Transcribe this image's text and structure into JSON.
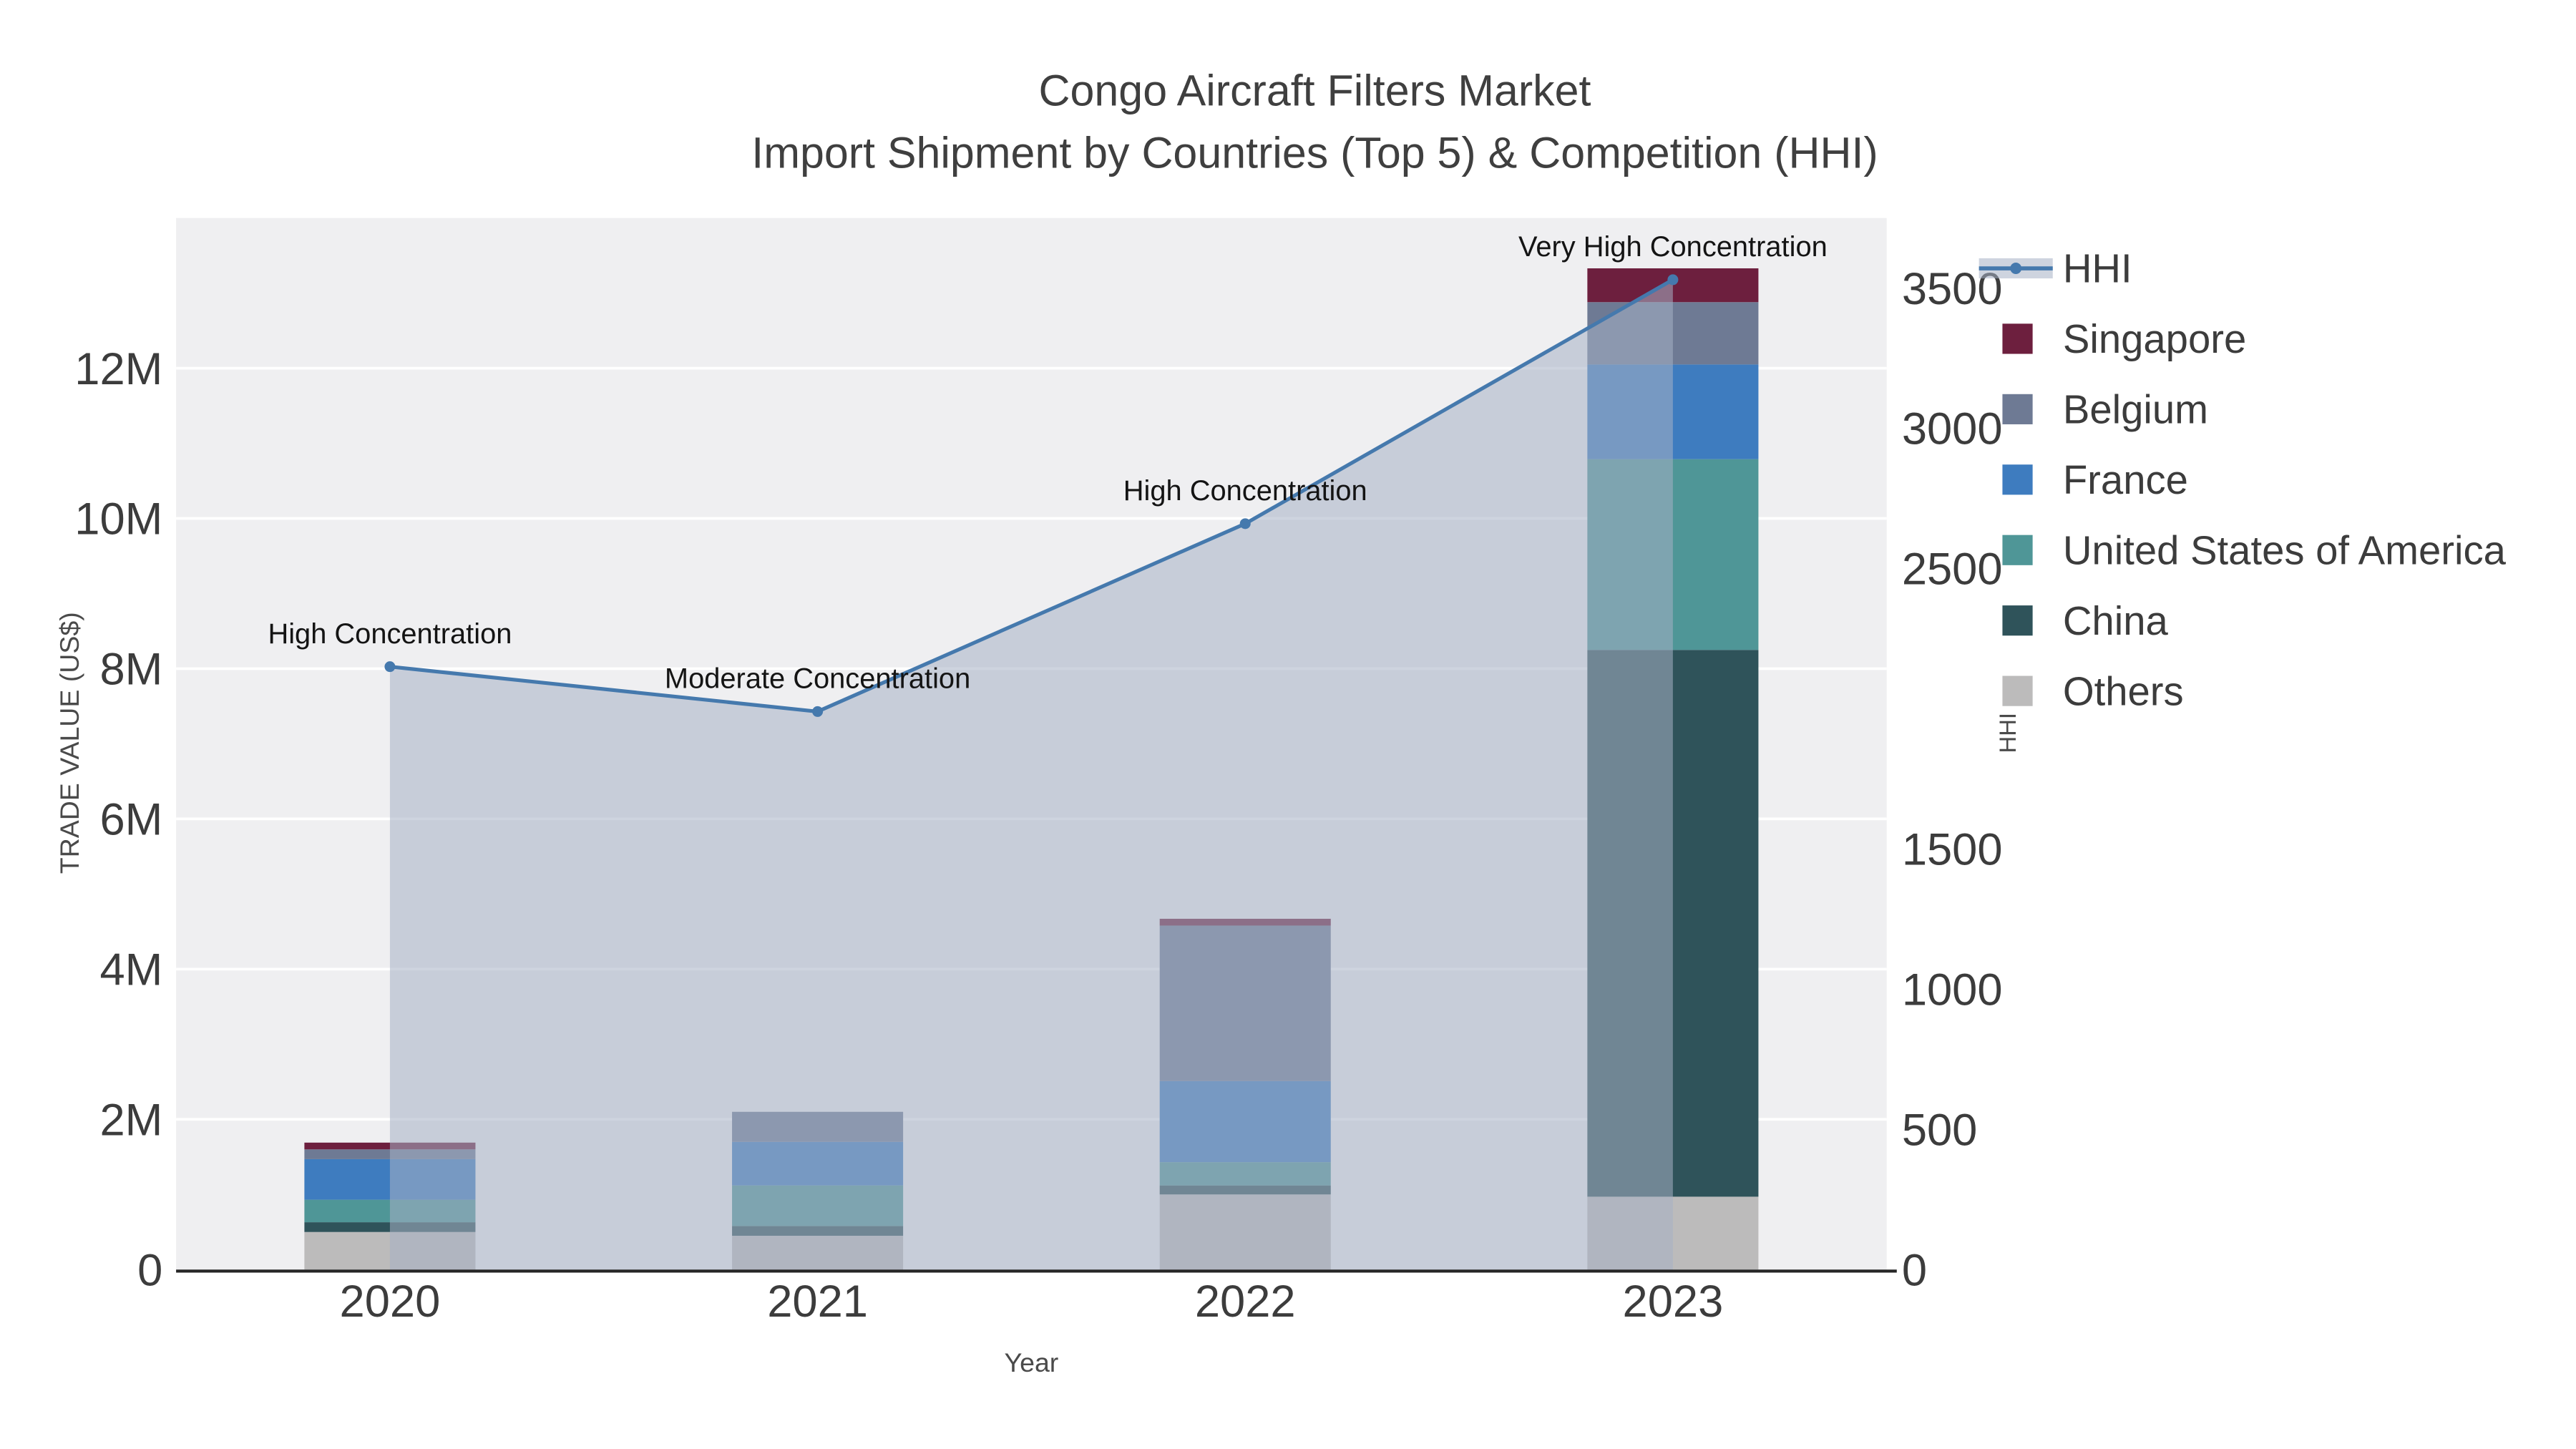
{
  "chart_data": {
    "type": "stacked-bar-with-line",
    "title": "Congo Aircraft Filters Market",
    "subtitle": "Import Shipment by Countries (Top 5) & Competition (HHI)",
    "xlabel": "Year",
    "ylabel": "TRADE VALUE (US$)",
    "y2label": "HHI",
    "categories": [
      "2020",
      "2021",
      "2022",
      "2023"
    ],
    "ylim": [
      0,
      14000000
    ],
    "y2lim": [
      0,
      3750
    ],
    "y_ticks": [
      {
        "v": 0,
        "label": "0"
      },
      {
        "v": 2000000,
        "label": "2M"
      },
      {
        "v": 4000000,
        "label": "4M"
      },
      {
        "v": 6000000,
        "label": "6M"
      },
      {
        "v": 8000000,
        "label": "8M"
      },
      {
        "v": 10000000,
        "label": "10M"
      },
      {
        "v": 12000000,
        "label": "12M"
      }
    ],
    "y2_ticks": [
      {
        "v": 0,
        "label": "0"
      },
      {
        "v": 500,
        "label": "500"
      },
      {
        "v": 1000,
        "label": "1000"
      },
      {
        "v": 1500,
        "label": "1500"
      },
      {
        "v": 2500,
        "label": "2500"
      },
      {
        "v": 3000,
        "label": "3000"
      },
      {
        "v": 3500,
        "label": "3500"
      }
    ],
    "bar_series": [
      {
        "name": "Others",
        "color": "#bcbbbb",
        "values": [
          500000,
          450000,
          1000000,
          970000
        ]
      },
      {
        "name": "China",
        "color": "#2f535a",
        "values": [
          130000,
          130000,
          120000,
          7280000
        ]
      },
      {
        "name": "United States of America",
        "color": "#4f9697",
        "values": [
          300000,
          540000,
          310000,
          2540000
        ]
      },
      {
        "name": "France",
        "color": "#3e7cbf",
        "values": [
          540000,
          580000,
          1080000,
          1260000
        ]
      },
      {
        "name": "Belgium",
        "color": "#6e7a94",
        "values": [
          130000,
          400000,
          2070000,
          830000
        ]
      },
      {
        "name": "Singapore",
        "color": "#6d1f3e",
        "values": [
          90000,
          0,
          90000,
          450000
        ]
      }
    ],
    "line_series": {
      "name": "HHI",
      "color": "#4579ad",
      "area_fill": "rgba(166,177,196,0.55)",
      "values": [
        2150,
        1990,
        2660,
        3530
      ]
    },
    "annotations": [
      {
        "category": "2020",
        "text": "High Concentration"
      },
      {
        "category": "2021",
        "text": "Moderate Concentration"
      },
      {
        "category": "2022",
        "text": "High Concentration"
      },
      {
        "category": "2023",
        "text": "Very High Concentration"
      }
    ],
    "legend": [
      {
        "label": "HHI",
        "type": "line",
        "color": "#4579ad"
      },
      {
        "label": "Singapore",
        "type": "square",
        "color": "#6d1f3e"
      },
      {
        "label": "Belgium",
        "type": "square",
        "color": "#6e7a94"
      },
      {
        "label": "France",
        "type": "square",
        "color": "#3e7cbf"
      },
      {
        "label": "United States of America",
        "type": "square",
        "color": "#4f9697"
      },
      {
        "label": "China",
        "type": "square",
        "color": "#2f535a"
      },
      {
        "label": "Others",
        "type": "square",
        "color": "#bcbbbb"
      }
    ],
    "legend_position": "right",
    "grid": true,
    "style": {
      "plot_bg": "#efeff1",
      "grid_color": "#ffffff",
      "axis_line_color": "#262626",
      "title_color": "#3f3f3f",
      "tick_color": "#3c3c3c",
      "annotation_color": "#141414"
    }
  }
}
